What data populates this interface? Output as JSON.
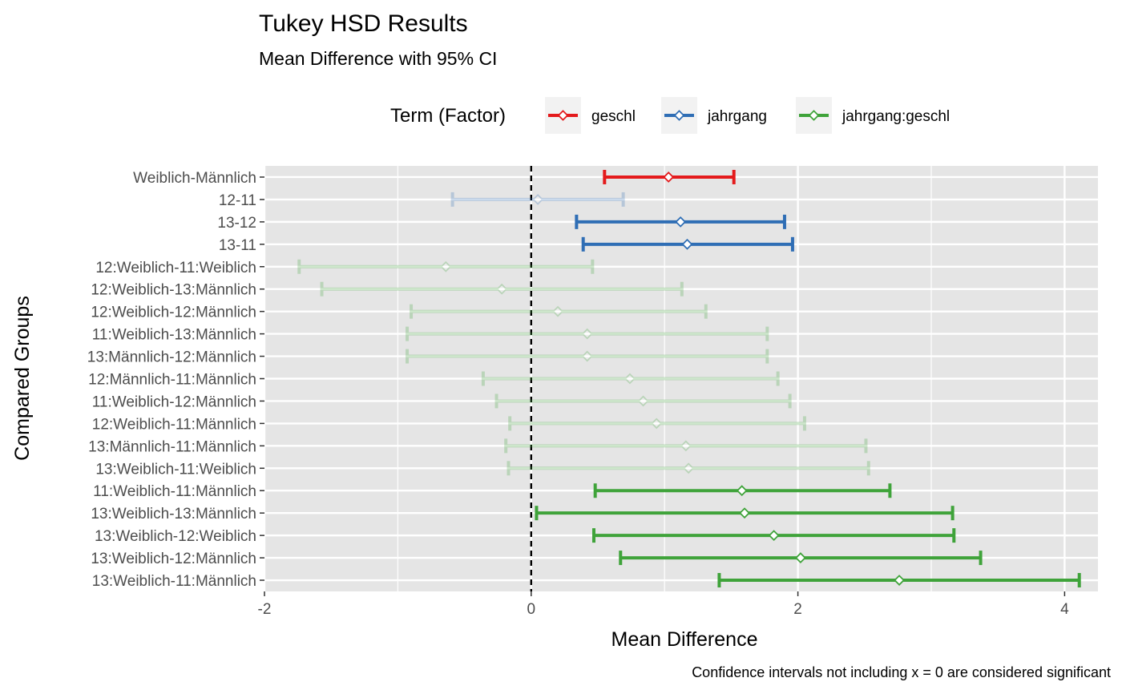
{
  "chart_data": {
    "type": "errorbar",
    "title": "Tukey HSD Results",
    "subtitle": "Mean Difference with 95% CI",
    "xlabel": "Mean Difference",
    "ylabel": "Compared Groups",
    "caption": "Confidence intervals not including x = 0 are considered significant",
    "xlim": [
      -2.0,
      4.25
    ],
    "x_ticks": [
      -2,
      0,
      2,
      4
    ],
    "x_tick_labels": [
      "-2",
      "0",
      "2",
      "4"
    ],
    "reference_line_x": 0,
    "grid": true,
    "legend": {
      "title": "Term (Factor)",
      "placement": "top",
      "entries": [
        {
          "name": "geschl",
          "color": "#e41a1c"
        },
        {
          "name": "jahrgang",
          "color": "#2f6eb5"
        },
        {
          "name": "jahrgang:geschl",
          "color": "#3fa33a"
        }
      ]
    },
    "comparisons": [
      {
        "label": "Weiblich-Männlich",
        "term": "geschl",
        "diff": 1.03,
        "lwr": 0.55,
        "upr": 1.52,
        "significant": true
      },
      {
        "label": "12-11",
        "term": "jahrgang",
        "diff": 0.05,
        "lwr": -0.59,
        "upr": 0.69,
        "significant": false
      },
      {
        "label": "13-12",
        "term": "jahrgang",
        "diff": 1.12,
        "lwr": 0.34,
        "upr": 1.9,
        "significant": true
      },
      {
        "label": "13-11",
        "term": "jahrgang",
        "diff": 1.17,
        "lwr": 0.39,
        "upr": 1.96,
        "significant": true
      },
      {
        "label": "12:Weiblich-11:Weiblich",
        "term": "jahrgang:geschl",
        "diff": -0.64,
        "lwr": -1.74,
        "upr": 0.46,
        "significant": false
      },
      {
        "label": "12:Weiblich-13:Männlich",
        "term": "jahrgang:geschl",
        "diff": -0.22,
        "lwr": -1.57,
        "upr": 1.13,
        "significant": false
      },
      {
        "label": "12:Weiblich-12:Männlich",
        "term": "jahrgang:geschl",
        "diff": 0.2,
        "lwr": -0.9,
        "upr": 1.31,
        "significant": false
      },
      {
        "label": "11:Weiblich-13:Männlich",
        "term": "jahrgang:geschl",
        "diff": 0.42,
        "lwr": -0.93,
        "upr": 1.77,
        "significant": false
      },
      {
        "label": "13:Männlich-12:Männlich",
        "term": "jahrgang:geschl",
        "diff": 0.42,
        "lwr": -0.93,
        "upr": 1.77,
        "significant": false
      },
      {
        "label": "12:Männlich-11:Männlich",
        "term": "jahrgang:geschl",
        "diff": 0.74,
        "lwr": -0.36,
        "upr": 1.85,
        "significant": false
      },
      {
        "label": "11:Weiblich-12:Männlich",
        "term": "jahrgang:geschl",
        "diff": 0.84,
        "lwr": -0.26,
        "upr": 1.94,
        "significant": false
      },
      {
        "label": "12:Weiblich-11:Männlich",
        "term": "jahrgang:geschl",
        "diff": 0.94,
        "lwr": -0.16,
        "upr": 2.05,
        "significant": false
      },
      {
        "label": "13:Männlich-11:Männlich",
        "term": "jahrgang:geschl",
        "diff": 1.16,
        "lwr": -0.19,
        "upr": 2.51,
        "significant": false
      },
      {
        "label": "13:Weiblich-11:Weiblich",
        "term": "jahrgang:geschl",
        "diff": 1.18,
        "lwr": -0.17,
        "upr": 2.53,
        "significant": false
      },
      {
        "label": "11:Weiblich-11:Männlich",
        "term": "jahrgang:geschl",
        "diff": 1.58,
        "lwr": 0.48,
        "upr": 2.69,
        "significant": true
      },
      {
        "label": "13:Weiblich-13:Männlich",
        "term": "jahrgang:geschl",
        "diff": 1.6,
        "lwr": 0.04,
        "upr": 3.16,
        "significant": true
      },
      {
        "label": "13:Weiblich-12:Weiblich",
        "term": "jahrgang:geschl",
        "diff": 1.82,
        "lwr": 0.47,
        "upr": 3.17,
        "significant": true
      },
      {
        "label": "13:Weiblich-12:Männlich",
        "term": "jahrgang:geschl",
        "diff": 2.02,
        "lwr": 0.67,
        "upr": 3.37,
        "significant": true
      },
      {
        "label": "13:Weiblich-11:Männlich",
        "term": "jahrgang:geschl",
        "diff": 2.76,
        "lwr": 1.41,
        "upr": 4.11,
        "significant": true
      }
    ]
  }
}
